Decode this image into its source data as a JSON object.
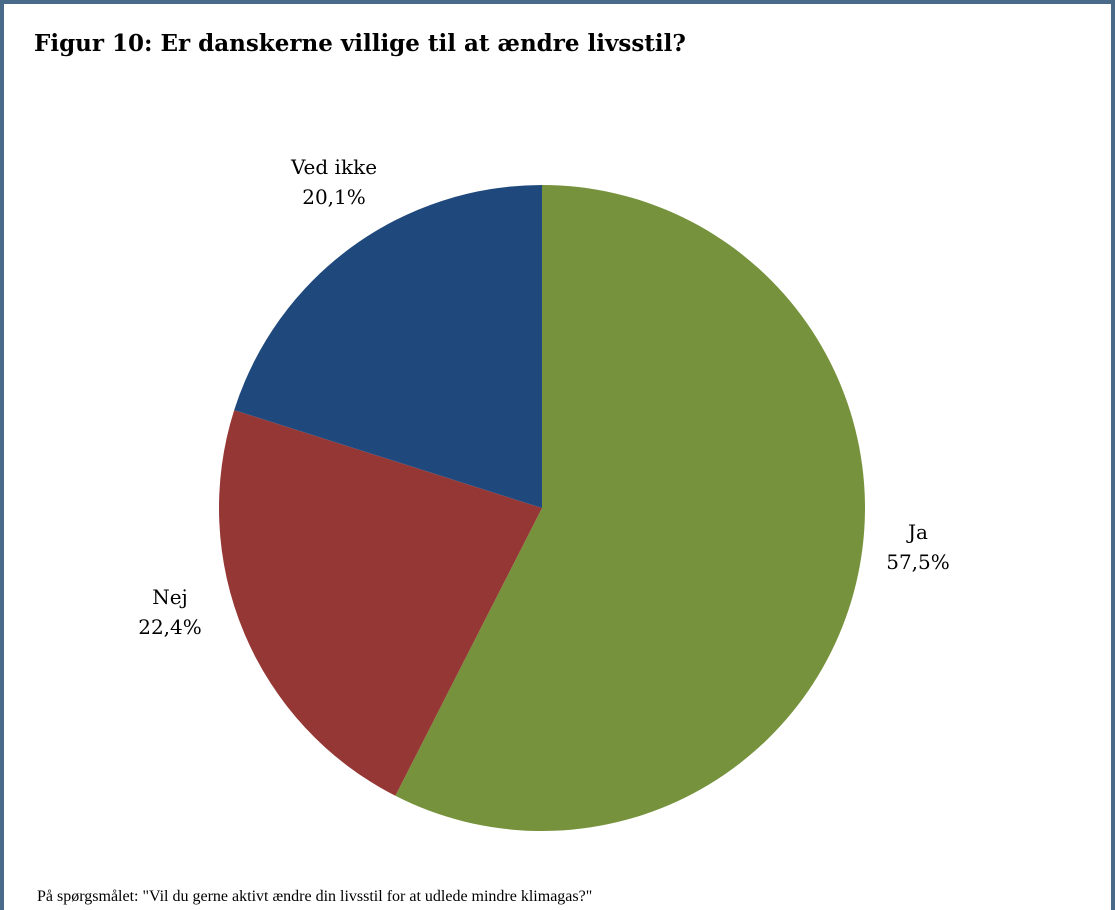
{
  "chart_data": {
    "type": "pie",
    "title": "Figur 10: Er danskerne villige til at ændre livsstil?",
    "note": "På spørgsmålet: \"Vil du gerne aktivt ændre din livsstil for at udlede mindre klimagas?\"",
    "slices": [
      {
        "label": "Ja",
        "value": 57.5,
        "value_label": "57,5%",
        "color": "#76923c"
      },
      {
        "label": "Nej",
        "value": 22.4,
        "value_label": "22,4%",
        "color": "#953735"
      },
      {
        "label": "Ved ikke",
        "value": 20.1,
        "value_label": "20,1%",
        "color": "#1f497d"
      }
    ],
    "start": "12 o'clock",
    "direction": "clockwise",
    "legend": "none"
  },
  "colors": {
    "frame": "#4a6a8a"
  }
}
